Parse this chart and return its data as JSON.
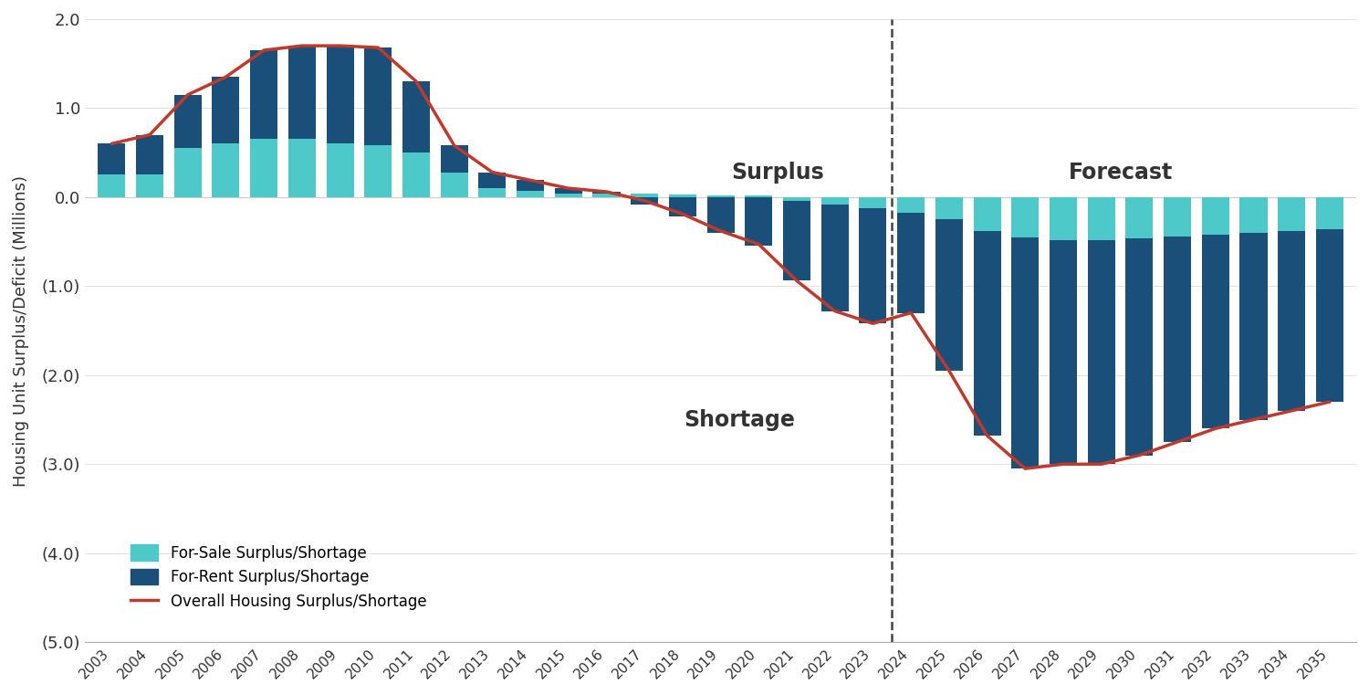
{
  "years": [
    2003,
    2004,
    2005,
    2006,
    2007,
    2008,
    2009,
    2010,
    2011,
    2012,
    2013,
    2014,
    2015,
    2016,
    2017,
    2018,
    2019,
    2020,
    2021,
    2022,
    2023,
    2024,
    2025,
    2026,
    2027,
    2028,
    2029,
    2030,
    2031,
    2032,
    2033,
    2034,
    2035
  ],
  "for_sale": [
    0.25,
    0.25,
    0.55,
    0.6,
    0.65,
    0.65,
    0.6,
    0.58,
    0.5,
    0.28,
    0.1,
    0.07,
    0.04,
    0.04,
    0.04,
    0.03,
    0.02,
    0.02,
    -0.04,
    -0.08,
    -0.12,
    -0.18,
    -0.25,
    -0.38,
    -0.45,
    -0.48,
    -0.48,
    -0.46,
    -0.44,
    -0.42,
    -0.4,
    -0.38,
    -0.36
  ],
  "for_rent": [
    0.35,
    0.45,
    0.6,
    0.75,
    1.0,
    1.05,
    1.1,
    1.1,
    0.8,
    0.3,
    0.18,
    0.12,
    0.06,
    0.02,
    -0.08,
    -0.22,
    -0.4,
    -0.55,
    -0.9,
    -1.2,
    -1.3,
    -1.12,
    -1.7,
    -2.3,
    -2.6,
    -2.52,
    -2.52,
    -2.44,
    -2.31,
    -2.18,
    -2.1,
    -2.02,
    -1.94
  ],
  "overall_line": [
    0.6,
    0.7,
    1.15,
    1.35,
    1.65,
    1.7,
    1.7,
    1.68,
    1.3,
    0.58,
    0.28,
    0.19,
    0.1,
    0.06,
    -0.04,
    -0.19,
    -0.38,
    -0.53,
    -0.94,
    -1.28,
    -1.42,
    -1.3,
    -1.95,
    -2.68,
    -3.05,
    -3.0,
    -3.0,
    -2.9,
    -2.75,
    -2.6,
    -2.5,
    -2.4,
    -2.3
  ],
  "color_sale": "#4ec9c9",
  "color_rent": "#1a4f7a",
  "color_line": "#c0392b",
  "color_dashed": "#444444",
  "forecast_year": 2023.5,
  "ylabel": "Housing Unit Surplus/Deficit (Millions)",
  "ylim": [
    -5.0,
    2.0
  ],
  "yticks": [
    2.0,
    1.0,
    0.0,
    -1.0,
    -2.0,
    -3.0,
    -4.0,
    -5.0
  ],
  "ytick_labels_pos": [
    "2.0",
    "1.0",
    "0.0"
  ],
  "ytick_labels_neg": [
    "(1.0)",
    "(2.0)",
    "(3.0)",
    "(4.0)",
    "(5.0)"
  ],
  "surplus_label": "Surplus",
  "shortage_label": "Shortage",
  "forecast_label": "Forecast",
  "legend_sale": "For-Sale Surplus/Shortage",
  "legend_rent": "For-Rent Surplus/Shortage",
  "legend_line": "Overall Housing Surplus/Shortage",
  "background_color": "#ffffff",
  "bar_width": 0.72
}
